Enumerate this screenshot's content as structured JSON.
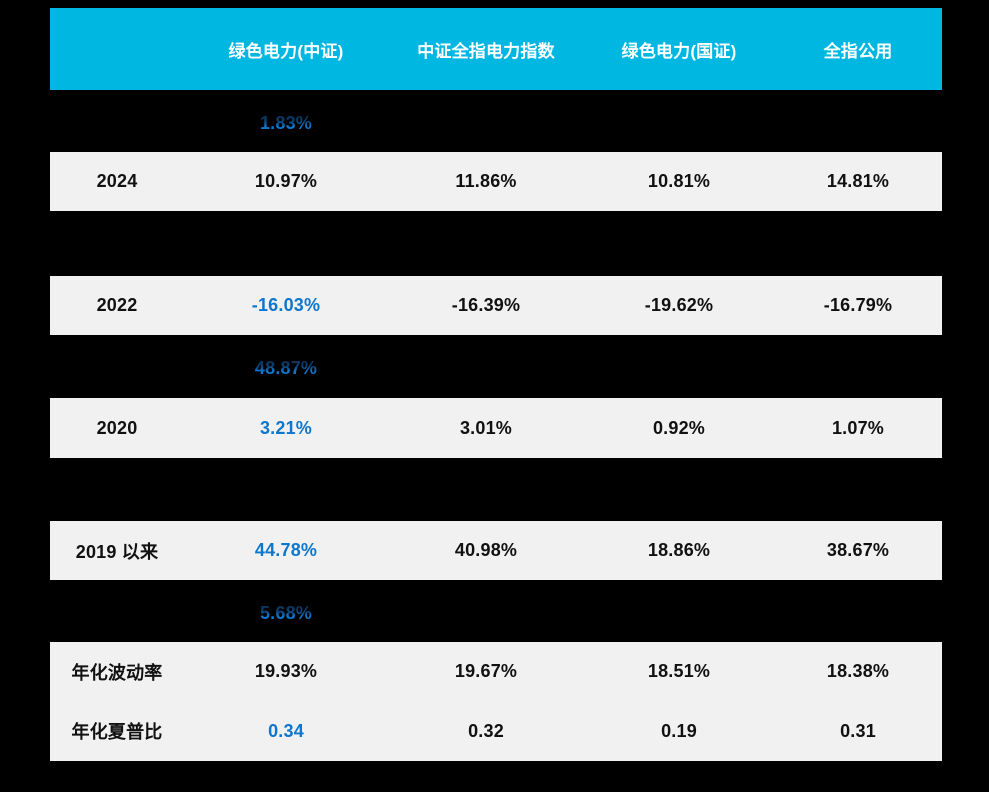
{
  "theme": {
    "page_background": "#000000",
    "header_background": "#00b7e2",
    "header_text_color": "#ffffff",
    "row_background": "#f1f1f1",
    "value_text_color": "#111111",
    "accent_blue": "#0d76cd"
  },
  "table": {
    "columns": [
      "绿色电力(中证)",
      "中证全指电力指数",
      "绿色电力(国证)",
      "全指公用"
    ],
    "partial_values": [
      "1.83%",
      "48.87%",
      "5.68%"
    ],
    "rows": {
      "y2024": {
        "label": "2024",
        "v1": "10.97%",
        "v2": "11.86%",
        "v3": "10.81%",
        "v4": "14.81%"
      },
      "y2022": {
        "label": "2022",
        "v1": "-16.03%",
        "v2": "-16.39%",
        "v3": "-19.62%",
        "v4": "-16.79%"
      },
      "y2020": {
        "label": "2020",
        "v1": "3.21%",
        "v2": "3.01%",
        "v3": "0.92%",
        "v4": "1.07%"
      },
      "since2019": {
        "label": "2019 以来",
        "v1": "44.78%",
        "v2": "40.98%",
        "v3": "18.86%",
        "v4": "38.67%"
      },
      "volatility": {
        "label": "年化波动率",
        "v1": "19.93%",
        "v2": "19.67%",
        "v3": "18.51%",
        "v4": "18.38%"
      },
      "sharpe": {
        "label": "年化夏普比",
        "v1": "0.34",
        "v2": "0.32",
        "v3": "0.19",
        "v4": "0.31"
      }
    }
  },
  "chart_data": {
    "type": "table",
    "title": "",
    "columns": [
      "",
      "绿色电力(中证)",
      "中证全指电力指数",
      "绿色电力(国证)",
      "全指公用"
    ],
    "rows": [
      [
        "",
        "1.83%",
        "",
        "",
        ""
      ],
      [
        "2024",
        "10.97%",
        "11.86%",
        "10.81%",
        "14.81%"
      ],
      [
        "2022",
        "-16.03%",
        "-16.39%",
        "-19.62%",
        "-16.79%"
      ],
      [
        "",
        "48.87%",
        "",
        "",
        ""
      ],
      [
        "2020",
        "3.21%",
        "3.01%",
        "0.92%",
        "1.07%"
      ],
      [
        "2019 以来",
        "44.78%",
        "40.98%",
        "18.86%",
        "38.67%"
      ],
      [
        "",
        "5.68%",
        "",
        "",
        ""
      ],
      [
        "年化波动率",
        "19.93%",
        "19.67%",
        "18.51%",
        "18.38%"
      ],
      [
        "年化夏普比",
        "0.34",
        "0.32",
        "0.19",
        "0.31"
      ]
    ]
  }
}
